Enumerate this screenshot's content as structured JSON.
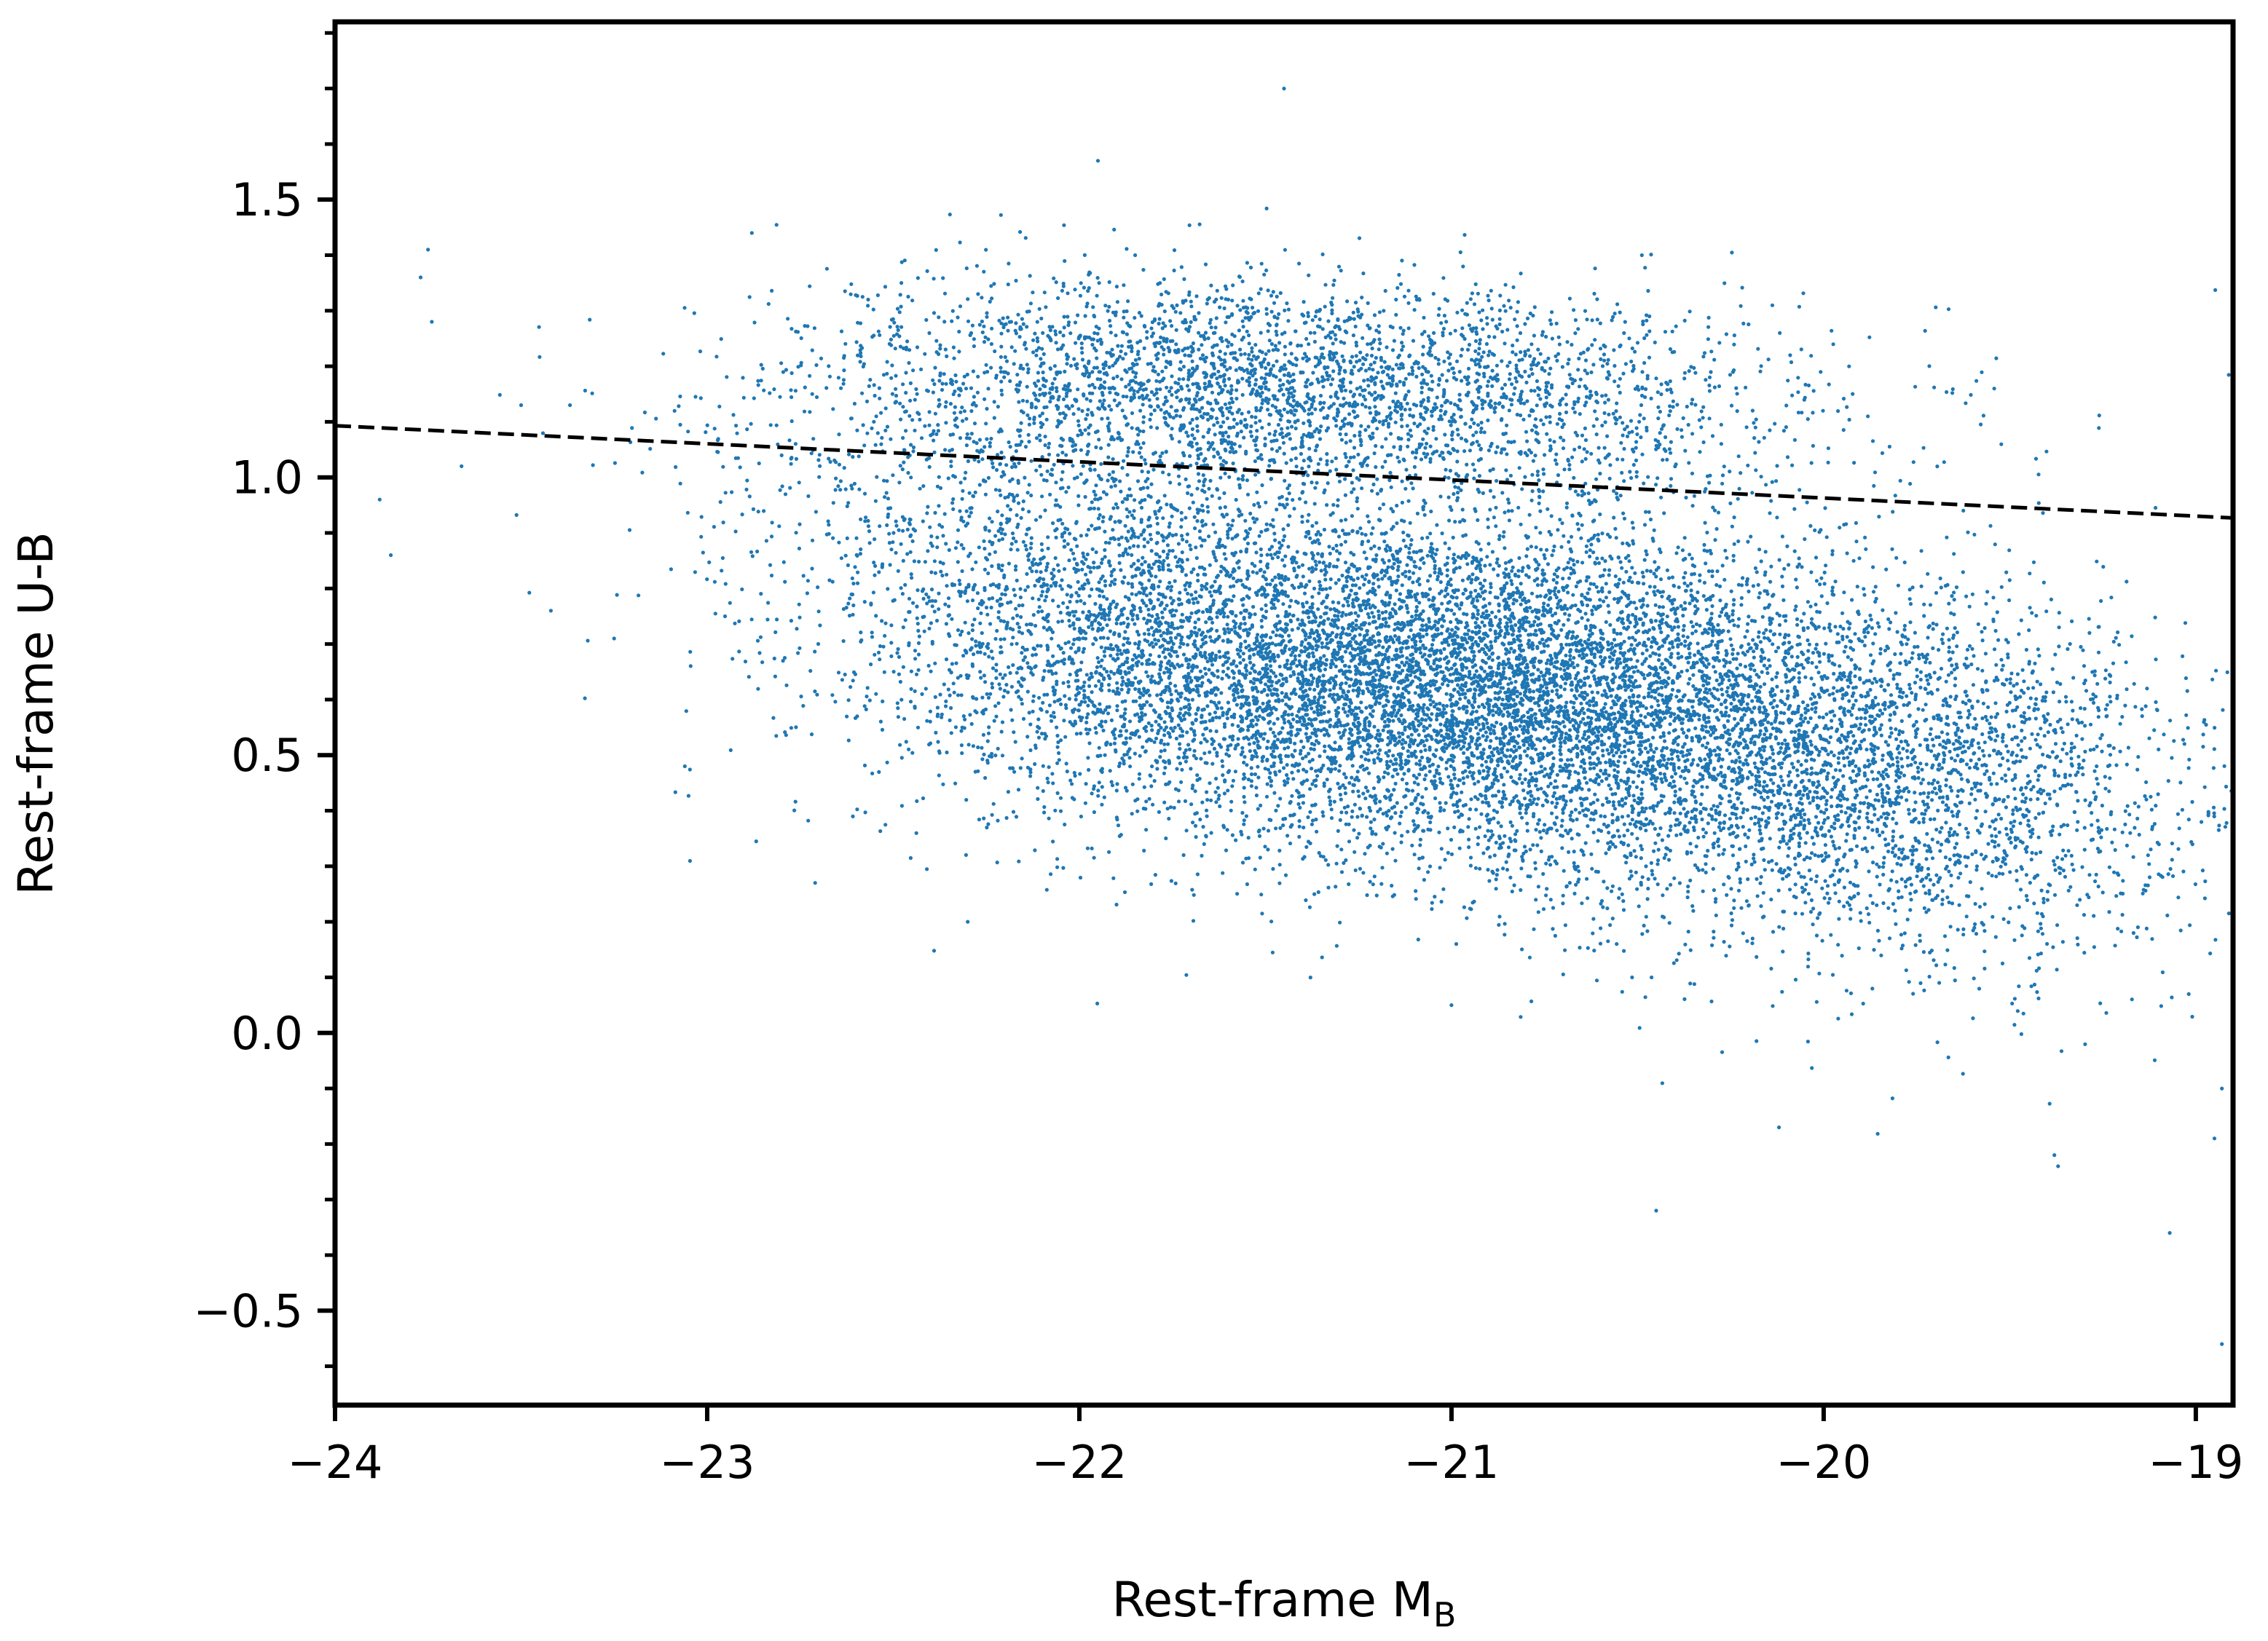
{
  "chart_data": {
    "type": "scatter",
    "title": "",
    "xlabel": "Rest-frame M",
    "xlabel_subscript": "B",
    "ylabel": "Rest-frame U-B",
    "xlim": [
      -24,
      -18.9
    ],
    "ylim": [
      -0.67,
      1.82
    ],
    "x_ticks": [
      -24,
      -23,
      -22,
      -21,
      -20,
      -19
    ],
    "x_tick_labels": [
      "−24",
      "−23",
      "−22",
      "−21",
      "−20",
      "−19"
    ],
    "y_ticks": [
      -0.5,
      0.0,
      0.5,
      1.0,
      1.5
    ],
    "y_tick_labels": [
      "−0.5",
      "0.0",
      "0.5",
      "1.0",
      "1.5"
    ],
    "y_minor_step": 0.1,
    "grid": false,
    "legend": "none",
    "point_color": "#1f77b4",
    "series": [
      {
        "kind": "scatter",
        "clusters": [
          {
            "cx": -21.1,
            "cy": 0.64,
            "sx": 0.55,
            "sy": 0.14,
            "count": 6000
          },
          {
            "cx": -20.3,
            "cy": 0.52,
            "sx": 0.55,
            "sy": 0.15,
            "count": 3500
          },
          {
            "cx": -21.9,
            "cy": 0.78,
            "sx": 0.45,
            "sy": 0.17,
            "count": 2000
          },
          {
            "cx": -19.7,
            "cy": 0.4,
            "sx": 0.4,
            "sy": 0.17,
            "count": 1300
          },
          {
            "cx": -21.5,
            "cy": 1.18,
            "sx": 0.55,
            "sy": 0.09,
            "count": 2200
          },
          {
            "cx": -20.8,
            "cy": 1.1,
            "sx": 0.55,
            "sy": 0.1,
            "count": 800
          },
          {
            "cx": -22.3,
            "cy": 1.1,
            "sx": 0.45,
            "sy": 0.14,
            "count": 500
          }
        ],
        "outliers": [
          [
            -23.75,
            1.41
          ],
          [
            -23.77,
            1.36
          ],
          [
            -23.74,
            1.28
          ],
          [
            -22.88,
            1.44
          ],
          [
            -21.95,
            1.57
          ],
          [
            -21.45,
            1.7
          ],
          [
            -23.85,
            0.86
          ],
          [
            -23.88,
            0.96
          ],
          [
            -23.66,
            1.02
          ],
          [
            -23.42,
            0.76
          ],
          [
            -23.25,
            0.71
          ],
          [
            -23.06,
            0.48
          ],
          [
            -22.71,
            0.27
          ],
          [
            -22.3,
            0.2
          ],
          [
            -21.0,
            0.05
          ],
          [
            -20.45,
            -0.32
          ],
          [
            -19.38,
            -0.22
          ],
          [
            -19.37,
            -0.24
          ],
          [
            -19.07,
            -0.36
          ],
          [
            -18.93,
            -0.56
          ],
          [
            -18.95,
            -0.19
          ],
          [
            -18.93,
            -0.1
          ],
          [
            -20.12,
            -0.17
          ],
          [
            -21.85,
            1.4
          ],
          [
            -23.5,
            1.13
          ]
        ]
      },
      {
        "kind": "line",
        "style": "dashed",
        "color": "#000000",
        "x": [
          -24,
          -18.9
        ],
        "y": [
          1.093,
          0.927
        ]
      }
    ]
  }
}
